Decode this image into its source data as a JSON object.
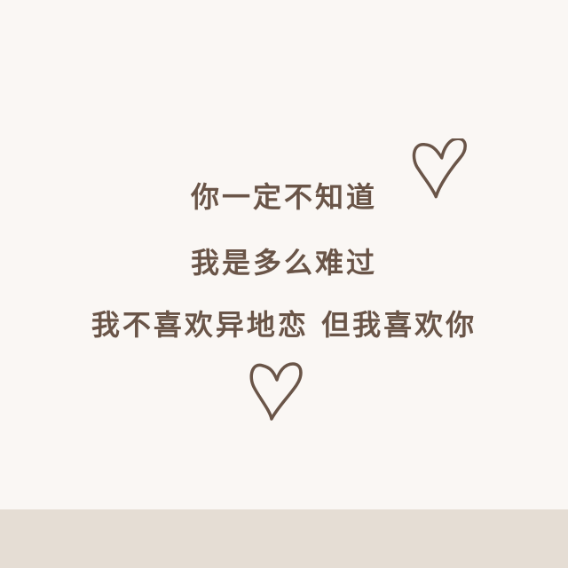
{
  "lines": {
    "line1": "你一定不知道",
    "line2": "我是多么难过",
    "line3": "我不喜欢异地恋  但我喜欢你"
  },
  "icons": {
    "top": "heart-icon",
    "bottom": "heart-icon"
  },
  "colors": {
    "background": "#faf7f4",
    "text": "#6a5548",
    "heart_stroke": "#6a5548",
    "bottom_band": "#e5ddd4"
  }
}
